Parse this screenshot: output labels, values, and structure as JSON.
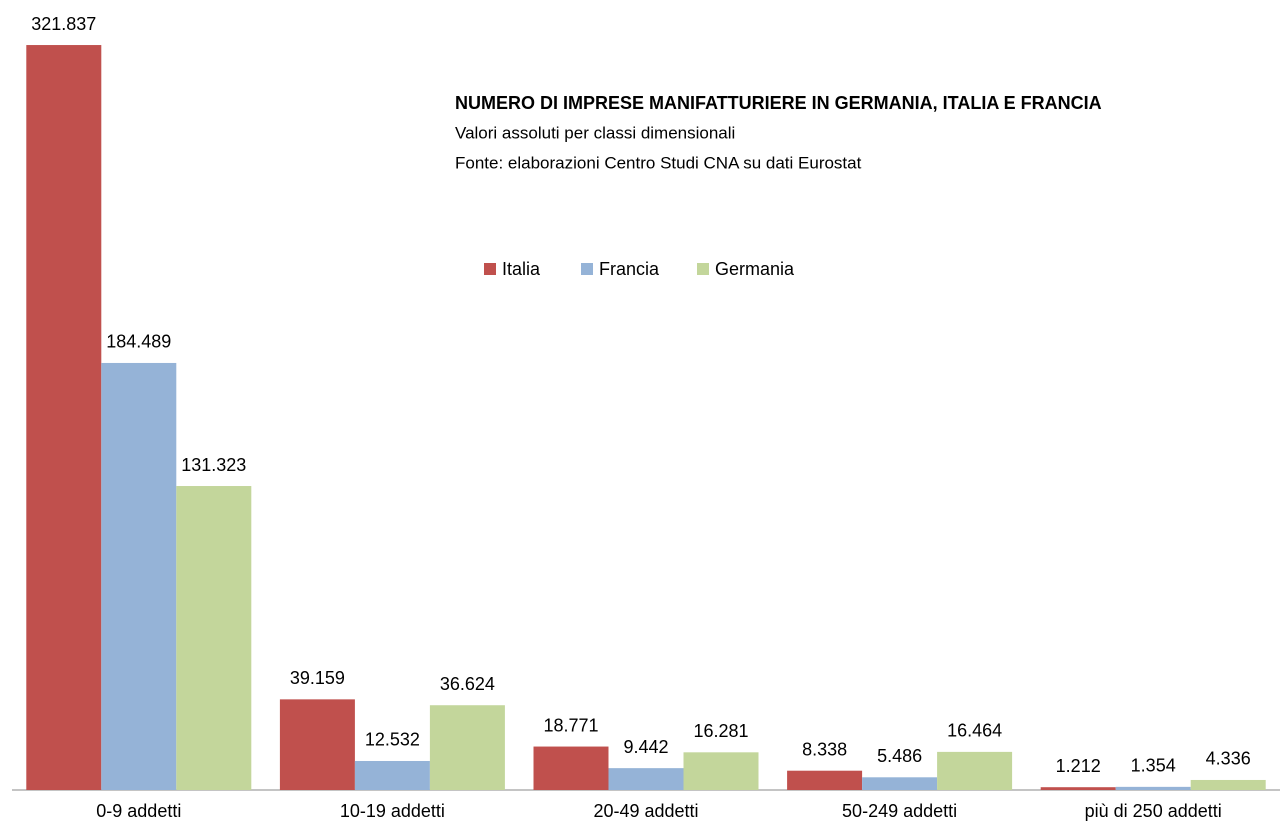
{
  "chart_data": {
    "type": "bar",
    "title": "NUMERO DI IMPRESE MANIFATTURIERE IN GERMANIA, ITALIA E FRANCIA",
    "subtitle": "Valori assoluti per classi dimensionali",
    "source": "Fonte: elaborazioni Centro Studi CNA su dati Eurostat",
    "categories": [
      "0-9 addetti",
      "10-19 addetti",
      "20-49 addetti",
      "50-249  addetti",
      "più di 250 addetti"
    ],
    "series": [
      {
        "name": "Italia",
        "color": "#c0504d",
        "values": [
          321837,
          39159,
          18771,
          8338,
          1212
        ],
        "value_labels": [
          "321.837",
          "39.159",
          "18.771",
          "8.338",
          "1.212"
        ]
      },
      {
        "name": "Francia",
        "color": "#95b3d7",
        "values": [
          184489,
          12532,
          9442,
          5486,
          1354
        ],
        "value_labels": [
          "184.489",
          "12.532",
          "9.442",
          "5.486",
          "1.354"
        ]
      },
      {
        "name": "Germania",
        "color": "#c3d69b",
        "values": [
          131323,
          36624,
          16281,
          16464,
          4336
        ],
        "value_labels": [
          "131.323",
          "36.624",
          "16.281",
          "16.464",
          "4.336"
        ]
      }
    ],
    "ylim": [
      0,
      340000
    ]
  }
}
